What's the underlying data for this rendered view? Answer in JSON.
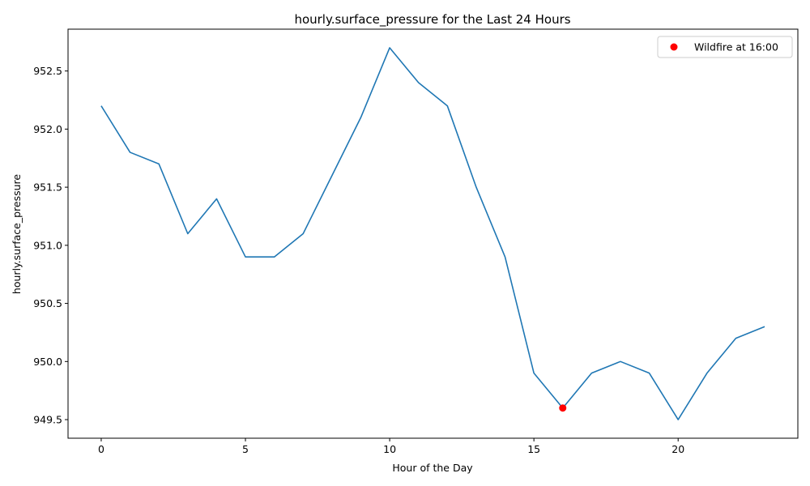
{
  "chart_data": {
    "type": "line",
    "title": "hourly.surface_pressure for the Last 24 Hours",
    "xlabel": "Hour of the Day",
    "ylabel": "hourly.surface_pressure",
    "xlim": [
      -1.15,
      24.15
    ],
    "ylim": [
      949.34,
      952.86
    ],
    "x_ticks": [
      0,
      5,
      10,
      15,
      20
    ],
    "y_ticks": [
      949.5,
      950.0,
      950.5,
      951.0,
      951.5,
      952.0,
      952.5
    ],
    "y_tick_labels": [
      "949.5",
      "950.0",
      "950.5",
      "951.0",
      "951.5",
      "952.0",
      "952.5"
    ],
    "grid": false,
    "legend_position": "top-right",
    "series": [
      {
        "color": "#1f77b4",
        "x": [
          0,
          1,
          2,
          3,
          4,
          5,
          6,
          7,
          8,
          9,
          10,
          11,
          12,
          13,
          14,
          15,
          16,
          17,
          18,
          19,
          20,
          21,
          22,
          23
        ],
        "values": [
          952.2,
          951.8,
          951.7,
          951.1,
          951.4,
          950.9,
          950.9,
          951.1,
          951.6,
          952.1,
          952.7,
          952.4,
          952.2,
          951.5,
          950.9,
          949.9,
          949.6,
          949.9,
          950.0,
          949.9,
          949.5,
          949.9,
          950.2,
          950.3
        ]
      }
    ],
    "highlight": {
      "name": "Wildfire at 16:00",
      "x": 16,
      "y": 949.6,
      "color": "#ff0000"
    }
  }
}
